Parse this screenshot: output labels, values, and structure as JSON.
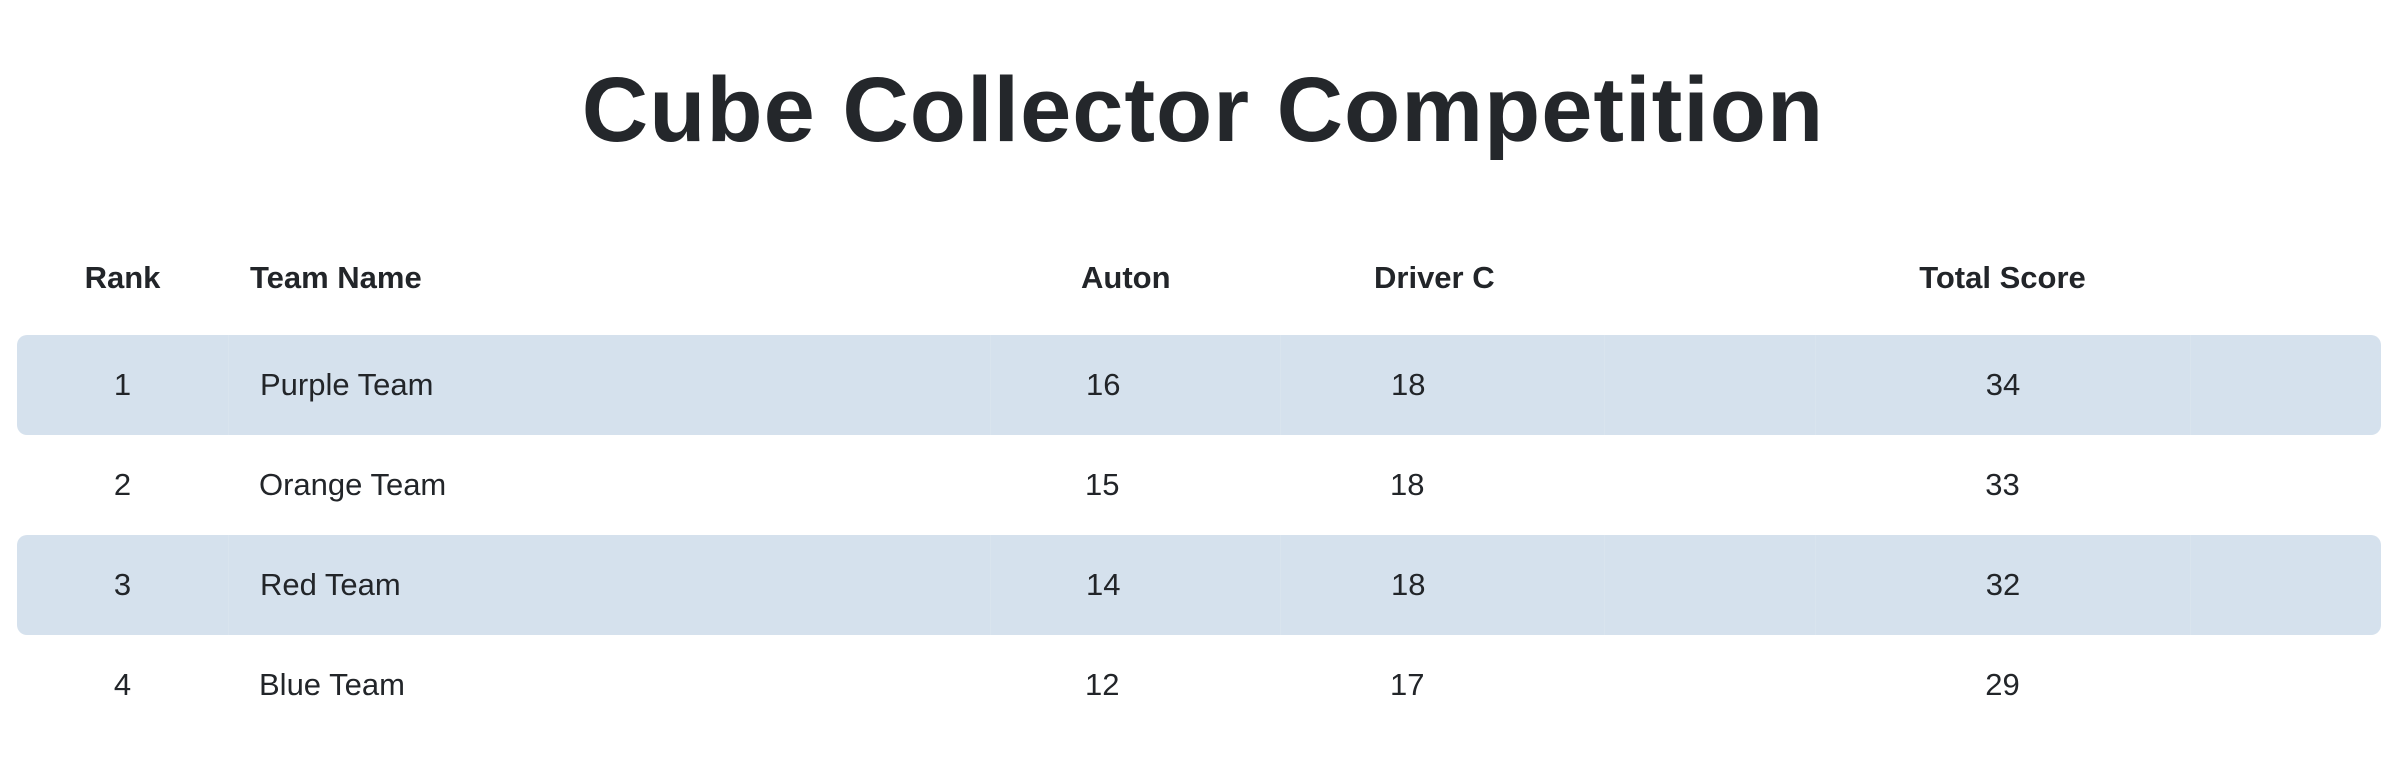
{
  "title": "Cube Collector Competition",
  "colors": {
    "row_shade": "#d5e1ed",
    "text": "#222529"
  },
  "columns": {
    "rank": "Rank",
    "team": "Team Name",
    "auton": "Auton",
    "driver": "Driver C",
    "total": "Total Score"
  },
  "rows": [
    {
      "rank": "1",
      "team": "Purple Team",
      "auton": "16",
      "driver": "18",
      "total": "34"
    },
    {
      "rank": "2",
      "team": "Orange Team",
      "auton": "15",
      "driver": "18",
      "total": "33"
    },
    {
      "rank": "3",
      "team": "Red Team",
      "auton": "14",
      "driver": "18",
      "total": "32"
    },
    {
      "rank": "4",
      "team": "Blue Team",
      "auton": "12",
      "driver": "17",
      "total": "29"
    }
  ]
}
